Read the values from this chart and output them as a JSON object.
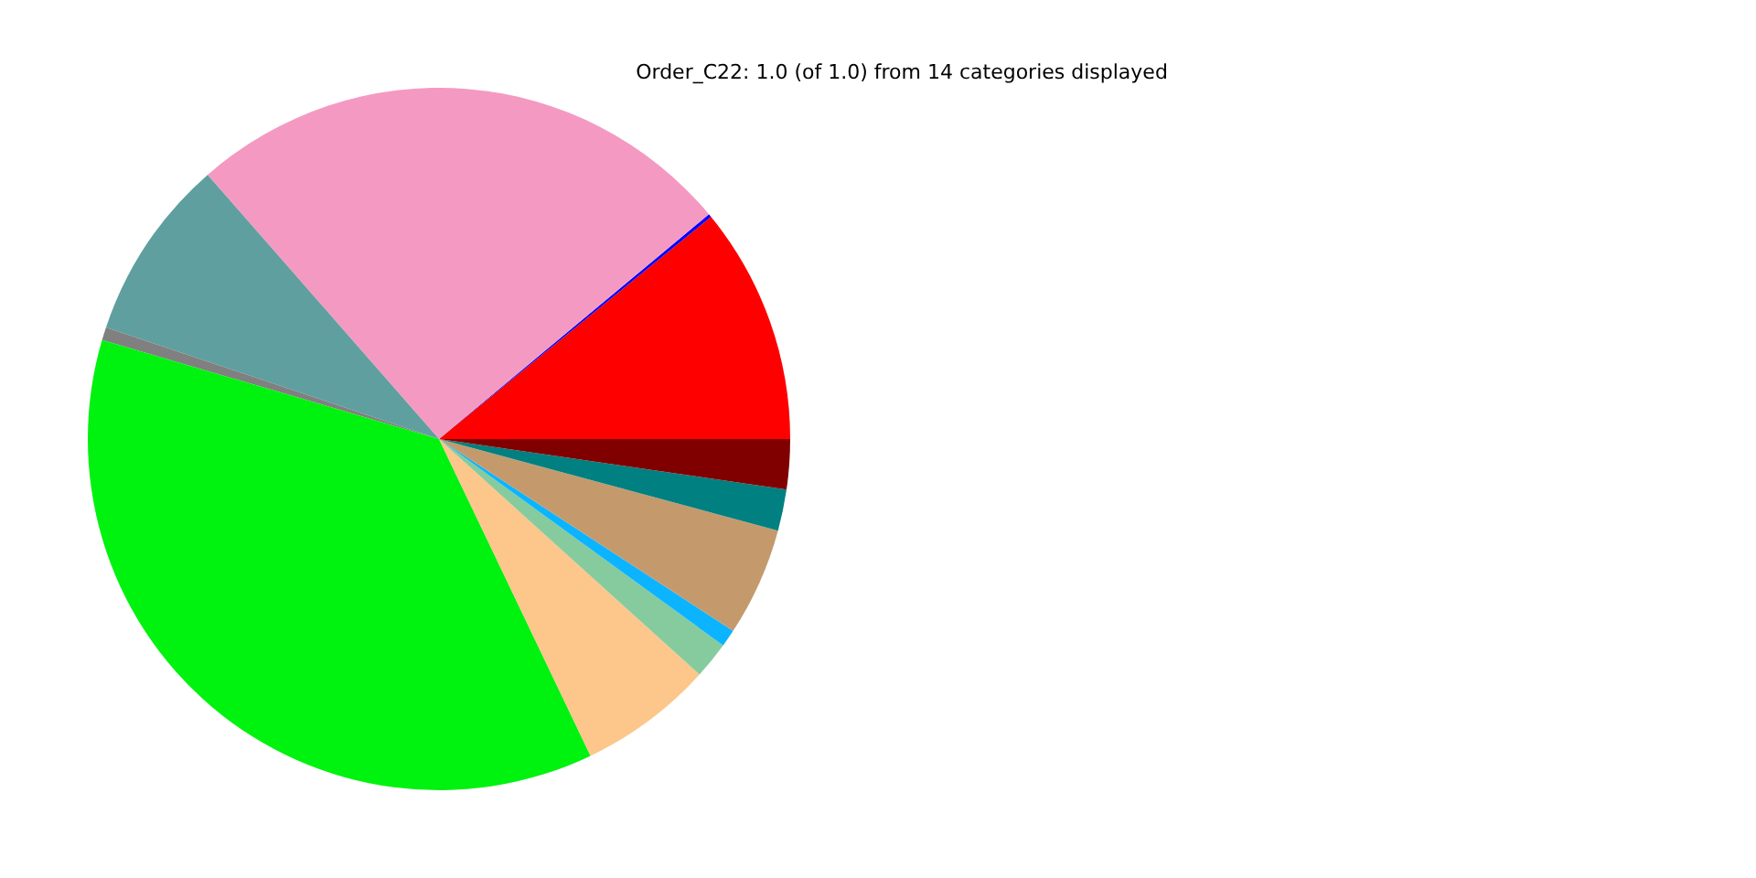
{
  "chart_data": {
    "type": "pie",
    "title": "Order_C22: 1.0 (of 1.0) from 14 categories displayed",
    "categories": [
      null,
      null,
      null,
      null,
      null,
      null,
      null,
      null,
      null,
      null,
      null,
      null
    ],
    "values": [
      10.9,
      0.15,
      25.4,
      8.4,
      0.6,
      36.65,
      6.2,
      1.7,
      0.8,
      5.0,
      1.9,
      2.3
    ],
    "colors": [
      "#ff0000",
      "#0000ff",
      "#f49ac2",
      "#5f9f9f",
      "#808080",
      "#00f20f",
      "#fdc68a",
      "#86cb9d",
      "#0cb4ff",
      "#c49a6c",
      "#008080",
      "#800000"
    ]
  }
}
